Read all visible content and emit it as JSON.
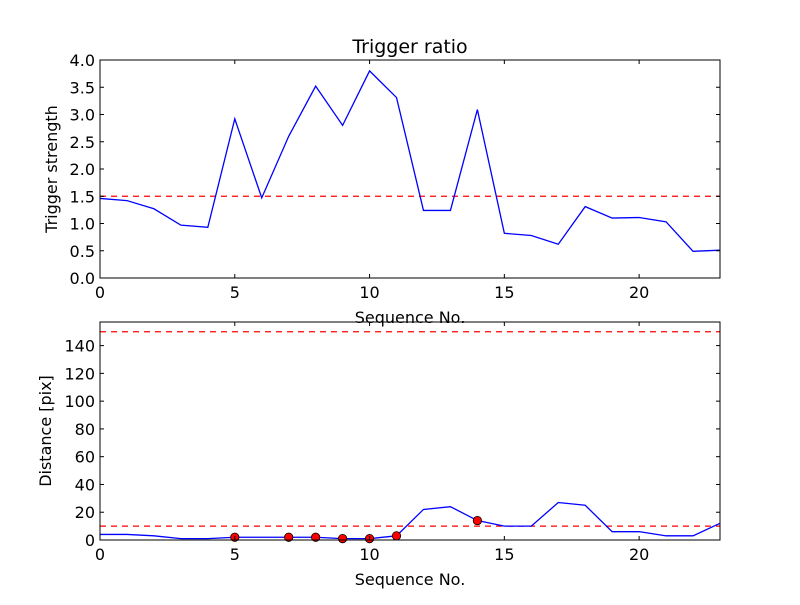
{
  "chart_data": [
    {
      "type": "line",
      "title": "Trigger ratio",
      "xlabel": "Sequence No.",
      "ylabel": "Trigger strength",
      "xlim": [
        0,
        23
      ],
      "ylim": [
        0,
        4.0
      ],
      "xticks": [
        0,
        5,
        10,
        15,
        20
      ],
      "yticks": [
        0.0,
        0.5,
        1.0,
        1.5,
        2.0,
        2.5,
        3.0,
        3.5,
        4.0
      ],
      "ytick_labels": [
        "0.0",
        "0.5",
        "1.0",
        "1.5",
        "2.0",
        "2.5",
        "3.0",
        "3.5",
        "4.0"
      ],
      "grid": false,
      "series": [
        {
          "color": "#0000ff",
          "style": "solid",
          "x": [
            0,
            1,
            2,
            3,
            4,
            5,
            6,
            7,
            8,
            9,
            10,
            11,
            12,
            13,
            14,
            15,
            16,
            17,
            18,
            19,
            20,
            21,
            22,
            23
          ],
          "y": [
            1.46,
            1.42,
            1.27,
            0.97,
            0.93,
            2.92,
            1.47,
            2.6,
            3.52,
            2.8,
            3.8,
            3.31,
            1.24,
            1.24,
            3.09,
            0.82,
            0.78,
            0.62,
            1.31,
            1.1,
            1.11,
            1.03,
            0.49,
            0.51
          ]
        }
      ],
      "hlines": [
        {
          "y": 1.5,
          "color": "#ff0000",
          "style": "dashed"
        }
      ]
    },
    {
      "type": "line",
      "title": "",
      "xlabel": "Sequence No.",
      "ylabel": "Distance [pix]",
      "xlim": [
        0,
        23
      ],
      "ylim": [
        0,
        157
      ],
      "xticks": [
        0,
        5,
        10,
        15,
        20
      ],
      "yticks": [
        0,
        20,
        40,
        60,
        80,
        100,
        120,
        140
      ],
      "ytick_labels": [
        "0",
        "20",
        "40",
        "60",
        "80",
        "100",
        "120",
        "140"
      ],
      "grid": false,
      "series": [
        {
          "color": "#0000ff",
          "style": "solid",
          "x": [
            0,
            1,
            2,
            3,
            4,
            5,
            6,
            7,
            8,
            9,
            10,
            11,
            12,
            13,
            14,
            15,
            16,
            17,
            18,
            19,
            20,
            21,
            22,
            23
          ],
          "y": [
            4,
            4,
            3,
            1,
            1,
            2,
            2,
            2,
            2,
            1,
            1,
            3,
            22,
            24,
            14,
            10,
            10,
            27,
            25,
            6,
            6,
            3,
            3,
            12
          ]
        },
        {
          "color": "#ff0000",
          "style": "markers",
          "x": [
            5,
            7,
            8,
            9,
            10,
            11,
            14
          ],
          "y": [
            2,
            2,
            2,
            1,
            1,
            3,
            14
          ]
        }
      ],
      "hlines": [
        {
          "y": 10,
          "color": "#ff0000",
          "style": "dashed"
        },
        {
          "y": 150,
          "color": "#ff0000",
          "style": "dashed"
        }
      ]
    }
  ]
}
